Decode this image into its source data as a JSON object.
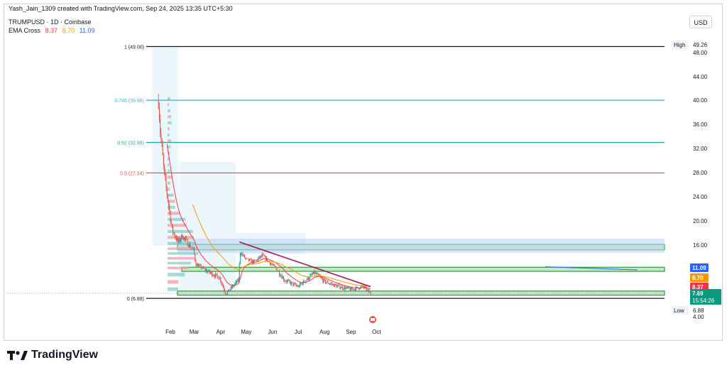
{
  "header": {
    "credit": "Yash_Jain_1309 created with TradingView.com, Sep 24, 2025 13:35 UTC+5:30",
    "symbol": "TRUMPUSD · 1D · Coinbase",
    "ema_label": "EMA Cross",
    "ema_values": [
      "8.37",
      "8.70",
      "11.09"
    ],
    "currency": "USD"
  },
  "brand": {
    "name": "TradingView"
  },
  "colors": {
    "up": "#26a69a",
    "down": "#ef5350",
    "fib_786": "#26c6da",
    "fib_62": "#26a69a",
    "fib_05": "#ef5350",
    "trendline": "#9c1b5e",
    "ema_fast": "#f23645",
    "ema_mid": "#ff9800",
    "ema_slow": "#2962ff"
  },
  "chart_data": {
    "type": "candlestick",
    "x_axis": {
      "labels": [
        "Feb",
        "Mar",
        "Apr",
        "May",
        "Jun",
        "Jul",
        "Aug",
        "Sep",
        "Oct"
      ]
    },
    "y_axis": {
      "ticks": [
        "48.00",
        "44.00",
        "40.00",
        "36.00",
        "32.00",
        "28.00",
        "24.00",
        "20.00",
        "16.00",
        "11.00",
        "7.69",
        "4.00"
      ]
    },
    "fib_levels": [
      {
        "label": "1 (49.00)",
        "value": 49.0
      },
      {
        "label": "0.786 (39.98)",
        "value": 39.98
      },
      {
        "label": "0.62 (32.99)",
        "value": 32.99
      },
      {
        "label": "0.5 (27.94)",
        "value": 27.94
      },
      {
        "label": "0 (6.89)",
        "value": 6.89
      }
    ],
    "high": {
      "label": "High",
      "value": "49.26"
    },
    "low": {
      "label": "Low",
      "value": "6.88"
    },
    "price_tags": [
      {
        "value": "11.09",
        "series": "ema_slow"
      },
      {
        "value": "8.70",
        "series": "ema_mid"
      },
      {
        "value": "8.37",
        "series": "ema_fast"
      },
      {
        "value": "7.69",
        "series": "last",
        "sub": "15:54:26"
      }
    ],
    "trendline": {
      "from": {
        "date": "2025-04-23",
        "price": 16.5
      },
      "to": {
        "date": "2025-09-24",
        "price": 8.6
      }
    },
    "support_zones": [
      {
        "low": 15.0,
        "high": 16.1
      },
      {
        "low": 10.7,
        "high": 11.4
      },
      {
        "low": 7.4,
        "high": 8.0
      }
    ],
    "candles": {
      "start": "2025-01-18",
      "end": "2025-09-24",
      "note": "approximate daily closes",
      "close_checkpoints": [
        {
          "date": "2025-01-18",
          "close": 40.0
        },
        {
          "date": "2025-01-20",
          "close": 35.0
        },
        {
          "date": "2025-01-25",
          "close": 27.5
        },
        {
          "date": "2025-02-03",
          "close": 18.5
        },
        {
          "date": "2025-02-10",
          "close": 16.5
        },
        {
          "date": "2025-02-15",
          "close": 17.5
        },
        {
          "date": "2025-02-28",
          "close": 15.0
        },
        {
          "date": "2025-03-03",
          "close": 12.0
        },
        {
          "date": "2025-03-15",
          "close": 10.8
        },
        {
          "date": "2025-03-31",
          "close": 9.8
        },
        {
          "date": "2025-04-07",
          "close": 7.6
        },
        {
          "date": "2025-04-22",
          "close": 9.5
        },
        {
          "date": "2025-04-24",
          "close": 14.5
        },
        {
          "date": "2025-05-01",
          "close": 13.0
        },
        {
          "date": "2025-05-10",
          "close": 12.5
        },
        {
          "date": "2025-05-20",
          "close": 13.8
        },
        {
          "date": "2025-06-01",
          "close": 11.8
        },
        {
          "date": "2025-06-15",
          "close": 9.5
        },
        {
          "date": "2025-07-01",
          "close": 8.6
        },
        {
          "date": "2025-07-20",
          "close": 10.5
        },
        {
          "date": "2025-08-01",
          "close": 9.3
        },
        {
          "date": "2025-08-15",
          "close": 8.7
        },
        {
          "date": "2025-09-01",
          "close": 8.2
        },
        {
          "date": "2025-09-15",
          "close": 8.6
        },
        {
          "date": "2025-09-24",
          "close": 7.69
        }
      ]
    }
  }
}
